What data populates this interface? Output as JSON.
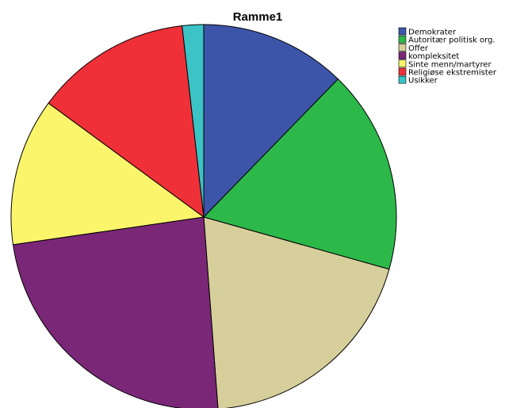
{
  "chart_data": {
    "type": "pie",
    "title": "Ramme1",
    "legend_position": "top-right",
    "categories": [
      "Demokrater",
      "Autoritær politisk org.",
      "Offer",
      "kompleksitet",
      "Sinte menn/martyrer",
      "Religiøse ekstremister",
      "Usikker"
    ],
    "values": [
      13.0,
      18.1,
      20.6,
      25.3,
      13.1,
      13.9,
      1.9
    ],
    "colors": [
      "#3d55a8",
      "#2db84a",
      "#d6cf9b",
      "#7a2778",
      "#fbf56c",
      "#ef3038",
      "#3bc3c6"
    ]
  }
}
